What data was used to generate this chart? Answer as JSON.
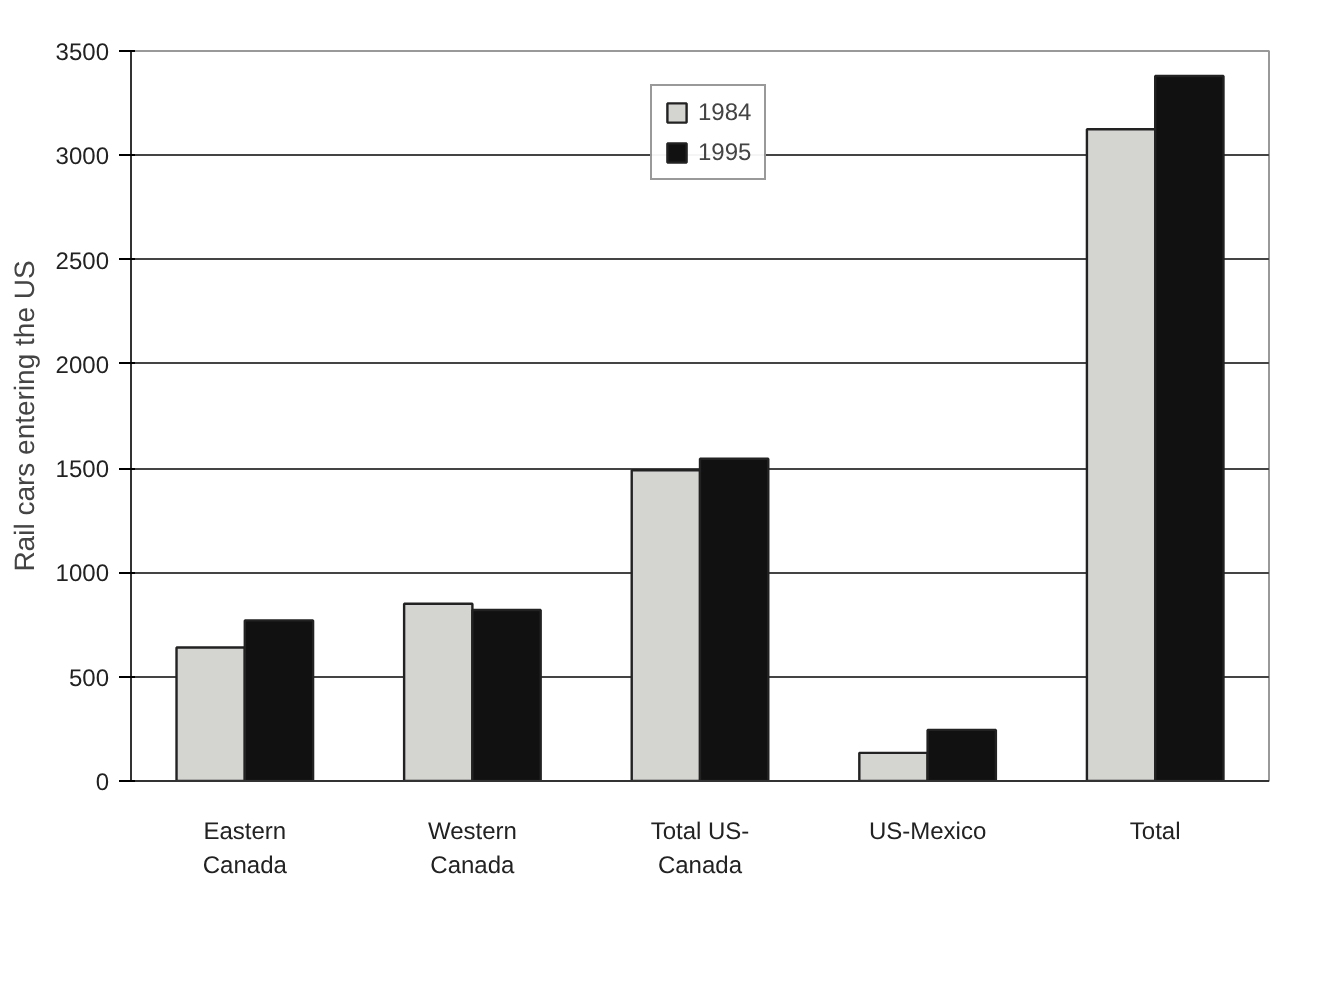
{
  "chart_data": {
    "type": "bar",
    "ylabel": "Rail cars entering the US",
    "categories": [
      "Eastern\nCanada",
      "Western\nCanada",
      "Total US-\nCanada",
      "US-Mexico",
      "Total"
    ],
    "series": [
      {
        "name": "1984",
        "color": "#d4d4d0",
        "values": [
          640,
          850,
          1490,
          135,
          3125
        ]
      },
      {
        "name": "1995",
        "color": "#111111",
        "values": [
          770,
          820,
          1545,
          245,
          3380
        ]
      }
    ],
    "ylim": [
      0,
      3500
    ],
    "yticks": [
      0,
      500,
      1000,
      1500,
      2000,
      2500,
      3000,
      3500
    ],
    "grid": "y",
    "legend": "top"
  }
}
